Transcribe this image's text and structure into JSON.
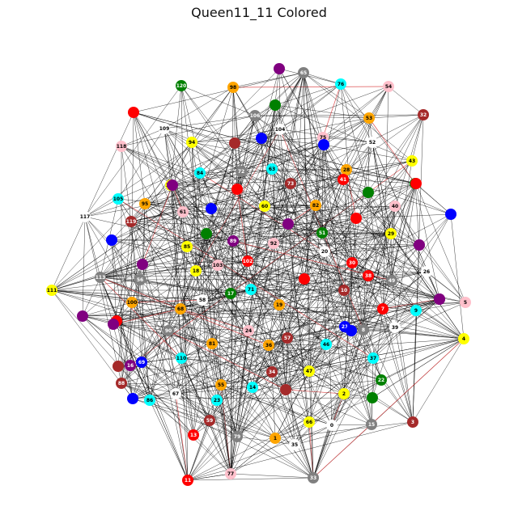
{
  "title": "Queen11_11 Colored",
  "graph": {
    "type": "network",
    "edge_color": "#000000",
    "highlight_edge_color": "#d62728",
    "palette": {
      "red": "#ff0000",
      "gray": "#808080",
      "cyan": "#00ffff",
      "pink": "#ffc0cb",
      "brown": "#a52a2a",
      "green": "#008000",
      "orange": "#ffa500",
      "white": "#ffffff",
      "purple": "#800080",
      "blue": "#0000ff",
      "yellow": "#ffff00"
    },
    "nodes": [
      {
        "id": "0",
        "color": "white"
      },
      {
        "id": "1",
        "color": "orange"
      },
      {
        "id": "2",
        "color": "yellow"
      },
      {
        "id": "3",
        "color": "brown"
      },
      {
        "id": "4",
        "color": "yellow"
      },
      {
        "id": "5",
        "color": "pink"
      },
      {
        "id": "6",
        "color": "purple"
      },
      {
        "id": "7",
        "color": "red"
      },
      {
        "id": "8",
        "color": "gray"
      },
      {
        "id": "9",
        "color": "cyan"
      },
      {
        "id": "10",
        "color": "brown"
      },
      {
        "id": "11",
        "color": "red"
      },
      {
        "id": "13",
        "color": "red"
      },
      {
        "id": "14",
        "color": "cyan"
      },
      {
        "id": "15",
        "color": "gray"
      },
      {
        "id": "16",
        "color": "purple"
      },
      {
        "id": "17",
        "color": "green"
      },
      {
        "id": "18",
        "color": "yellow"
      },
      {
        "id": "19",
        "color": "orange"
      },
      {
        "id": "20",
        "color": "white"
      },
      {
        "id": "21",
        "color": "blue"
      },
      {
        "id": "22",
        "color": "green"
      },
      {
        "id": "23",
        "color": "cyan"
      },
      {
        "id": "24",
        "color": "pink"
      },
      {
        "id": "25",
        "color": "purple"
      },
      {
        "id": "26",
        "color": "white"
      },
      {
        "id": "28",
        "color": "orange"
      },
      {
        "id": "29",
        "color": "yellow"
      },
      {
        "id": "30",
        "color": "red"
      },
      {
        "id": "32",
        "color": "brown"
      },
      {
        "id": "33",
        "color": "gray"
      },
      {
        "id": "34",
        "color": "brown"
      },
      {
        "id": "35",
        "color": "white"
      },
      {
        "id": "36",
        "color": "orange"
      },
      {
        "id": "37",
        "color": "cyan"
      },
      {
        "id": "38",
        "color": "red"
      },
      {
        "id": "39",
        "color": "white"
      },
      {
        "id": "40",
        "color": "pink"
      },
      {
        "id": "41",
        "color": "red"
      },
      {
        "id": "42",
        "color": "green"
      },
      {
        "id": "43",
        "color": "yellow"
      },
      {
        "id": "46",
        "color": "cyan"
      },
      {
        "id": "47",
        "color": "yellow"
      },
      {
        "id": "49",
        "color": "gray"
      },
      {
        "id": "51",
        "color": "green"
      },
      {
        "id": "52",
        "color": "white"
      },
      {
        "id": "53",
        "color": "orange"
      },
      {
        "id": "54",
        "color": "pink"
      },
      {
        "id": "55",
        "color": "orange"
      },
      {
        "id": "56",
        "color": "gray"
      },
      {
        "id": "57",
        "color": "brown"
      },
      {
        "id": "58",
        "color": "white"
      },
      {
        "id": "59",
        "color": "brown"
      },
      {
        "id": "60",
        "color": "yellow"
      },
      {
        "id": "61",
        "color": "pink"
      },
      {
        "id": "63",
        "color": "cyan"
      },
      {
        "id": "65",
        "color": "gray"
      },
      {
        "id": "66",
        "color": "yellow"
      },
      {
        "id": "67",
        "color": "white"
      },
      {
        "id": "68",
        "color": "orange"
      },
      {
        "id": "69",
        "color": "blue"
      },
      {
        "id": "71",
        "color": "cyan"
      },
      {
        "id": "72",
        "color": "gray"
      },
      {
        "id": "73",
        "color": "brown"
      },
      {
        "id": "75",
        "color": "pink"
      },
      {
        "id": "76",
        "color": "cyan"
      },
      {
        "id": "77",
        "color": "pink"
      },
      {
        "id": "79",
        "color": "gray"
      },
      {
        "id": "81",
        "color": "orange"
      },
      {
        "id": "82",
        "color": "orange"
      },
      {
        "id": "84",
        "color": "cyan"
      },
      {
        "id": "85",
        "color": "yellow"
      },
      {
        "id": "86",
        "color": "cyan"
      },
      {
        "id": "88",
        "color": "brown"
      },
      {
        "id": "89",
        "color": "purple"
      },
      {
        "id": "90",
        "color": "gray"
      },
      {
        "id": "92",
        "color": "pink"
      },
      {
        "id": "94",
        "color": "yellow"
      },
      {
        "id": "95",
        "color": "orange"
      },
      {
        "id": "98",
        "color": "orange"
      },
      {
        "id": "100",
        "color": "orange"
      },
      {
        "id": "102",
        "color": "red"
      },
      {
        "id": "103",
        "color": "pink"
      },
      {
        "id": "104",
        "color": "white"
      },
      {
        "id": "105",
        "color": "cyan"
      },
      {
        "id": "106",
        "color": "gray"
      },
      {
        "id": "108",
        "color": "yellow"
      },
      {
        "id": "109",
        "color": "white"
      },
      {
        "id": "110",
        "color": "cyan"
      },
      {
        "id": "111",
        "color": "yellow"
      },
      {
        "id": "113",
        "color": "gray"
      },
      {
        "id": "117",
        "color": "white"
      },
      {
        "id": "118",
        "color": "pink"
      },
      {
        "id": "119",
        "color": "brown"
      },
      {
        "id": "120",
        "color": "green"
      },
      {
        "id": "",
        "color": "red"
      },
      {
        "id": "",
        "color": "purple"
      },
      {
        "id": "",
        "color": "green"
      },
      {
        "id": "",
        "color": "blue"
      },
      {
        "id": "",
        "color": "brown"
      },
      {
        "id": "",
        "color": "red"
      },
      {
        "id": "",
        "color": "purple"
      },
      {
        "id": "",
        "color": "blue"
      },
      {
        "id": "",
        "color": "green"
      },
      {
        "id": "",
        "color": "purple"
      },
      {
        "id": "",
        "color": "blue"
      },
      {
        "id": "",
        "color": "purple"
      },
      {
        "id": "",
        "color": "brown"
      },
      {
        "id": "",
        "color": "red"
      },
      {
        "id": "",
        "color": "blue"
      },
      {
        "id": "",
        "color": "purple"
      },
      {
        "id": "",
        "color": "blue"
      },
      {
        "id": "",
        "color": "red"
      },
      {
        "id": "",
        "color": "green"
      },
      {
        "id": "",
        "color": "purple"
      },
      {
        "id": "",
        "color": "blue"
      },
      {
        "id": "",
        "color": "red"
      },
      {
        "id": "",
        "color": "purple"
      },
      {
        "id": "",
        "color": "green"
      },
      {
        "id": "",
        "color": "brown"
      },
      {
        "id": "",
        "color": "red"
      },
      {
        "id": "",
        "color": "blue"
      },
      {
        "id": "",
        "color": "purple"
      }
    ]
  }
}
